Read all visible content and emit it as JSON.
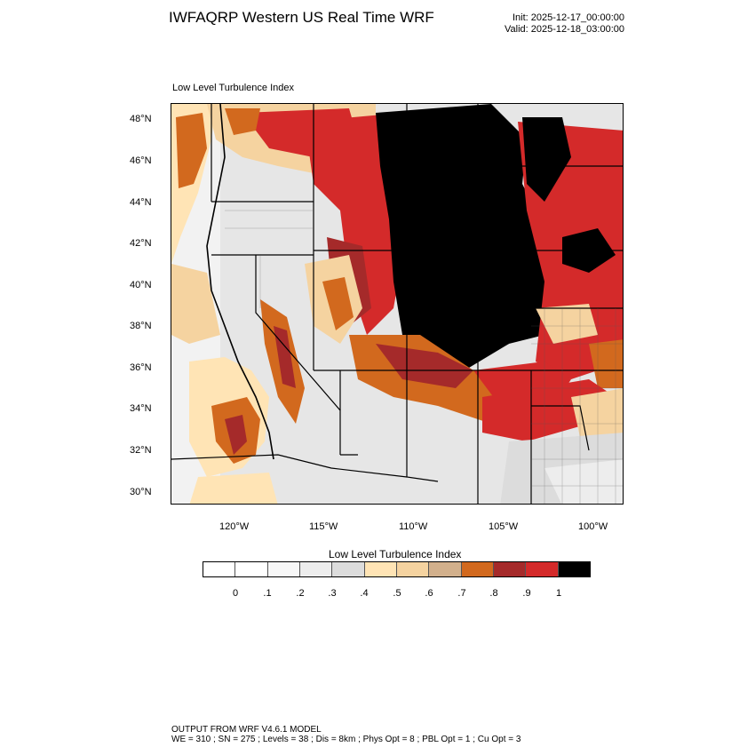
{
  "header": {
    "title": "IWFAQRP Western US Real Time WRF",
    "init": "Init: 2025-12-17_00:00:00",
    "valid": "Valid: 2025-12-18_03:00:00"
  },
  "map": {
    "subtitle": "Low Level Turbulence Index",
    "lat_labels": [
      "48°N",
      "46°N",
      "44°N",
      "42°N",
      "40°N",
      "38°N",
      "36°N",
      "34°N",
      "32°N",
      "30°N"
    ],
    "lon_labels": [
      "120°W",
      "115°W",
      "110°W",
      "105°W",
      "100°W"
    ]
  },
  "colorbar": {
    "title": "Low Level Turbulence Index",
    "labels": [
      "0",
      ".1",
      ".2",
      ".3",
      ".4",
      ".5",
      ".6",
      ".7",
      ".8",
      ".9",
      "1"
    ],
    "colors": [
      "#ffffff",
      "#f7f7f7",
      "#ededed",
      "#dcdcdc",
      "#ffe4b5",
      "#f5d3a0",
      "#d2b08c",
      "#d2691e",
      "#a52a2a",
      "#d42a2a",
      "#000000"
    ]
  },
  "footer": {
    "line1": "OUTPUT FROM WRF V4.6.1 MODEL",
    "line2": "WE = 310 ; SN = 275 ; Levels = 38 ; Dis = 8km ; Phys Opt = 8 ; PBL Opt = 1 ; Cu Opt = 3"
  }
}
